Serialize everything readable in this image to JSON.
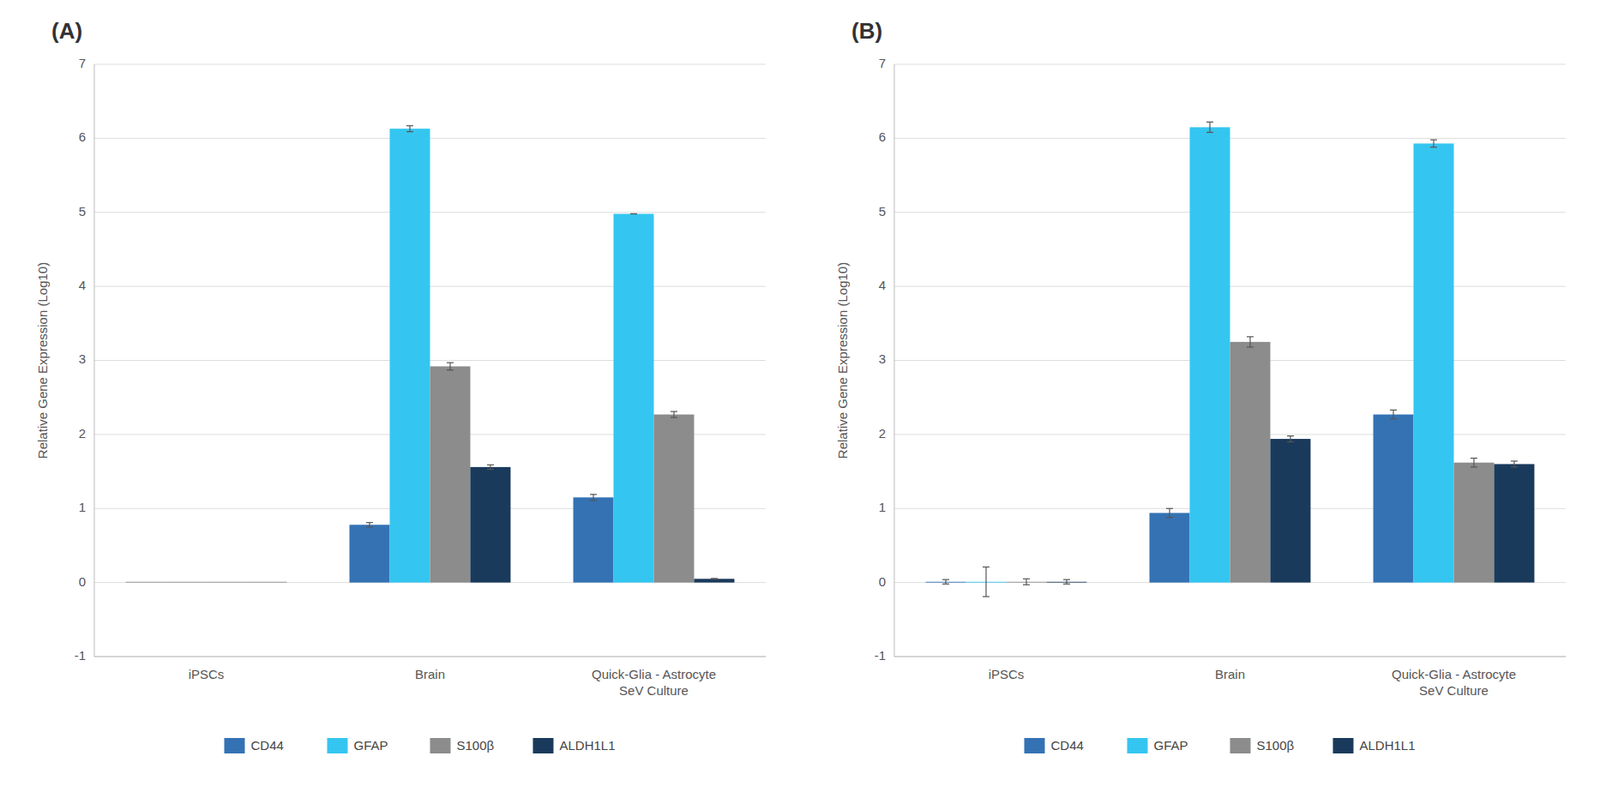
{
  "chart_data": [
    {
      "type": "bar",
      "title": "(A)",
      "categories": [
        "iPSCs",
        "Brain",
        "Quick-Glia - Astrocyte\nSeV Culture"
      ],
      "ylabel": "Relative Gene Expression (Log10)",
      "ylim": [
        -1,
        7
      ],
      "yticks": [
        -1,
        0,
        1,
        2,
        3,
        4,
        5,
        6,
        7
      ],
      "grid": true,
      "legend": "bottom",
      "series": [
        {
          "name": "CD44",
          "color": "#3472B4",
          "colors": [
            "#8C8C8C",
            "#3472B4",
            "#3472B4"
          ],
          "values": [
            0.01,
            0.78,
            1.15
          ],
          "errors": [
            null,
            0.03,
            0.04
          ]
        },
        {
          "name": "GFAP",
          "color": "#34C6F0",
          "colors": [
            "#8C8C8C",
            "#34C6F0",
            "#34C6F0"
          ],
          "values": [
            0.01,
            6.13,
            4.98
          ],
          "errors": [
            null,
            0.04,
            0.0
          ]
        },
        {
          "name": "S100β",
          "color": "#8C8C8C",
          "colors": [
            "#8C8C8C",
            "#8C8C8C",
            "#8C8C8C"
          ],
          "values": [
            0.01,
            2.92,
            2.27
          ],
          "errors": [
            null,
            0.05,
            0.04
          ]
        },
        {
          "name": "ALDH1L1",
          "color": "#1A3A5C",
          "colors": [
            "#8C8C8C",
            "#1A3A5C",
            "#1A3A5C"
          ],
          "values": [
            0.01,
            1.56,
            0.05
          ],
          "errors": [
            null,
            0.03,
            0.005
          ]
        }
      ]
    },
    {
      "type": "bar",
      "title": "(B)",
      "categories": [
        "iPSCs",
        "Brain",
        "Quick-Glia - Astrocyte\nSeV Culture"
      ],
      "ylabel": "Relative Gene Expression (Log10)",
      "ylim": [
        -1,
        7
      ],
      "yticks": [
        -1,
        0,
        1,
        2,
        3,
        4,
        5,
        6,
        7
      ],
      "grid": true,
      "legend": "bottom",
      "series": [
        {
          "name": "CD44",
          "color": "#3472B4",
          "values": [
            0.01,
            0.94,
            2.27
          ],
          "errors": [
            0.03,
            0.06,
            0.06
          ]
        },
        {
          "name": "GFAP",
          "color": "#34C6F0",
          "values": [
            0.01,
            6.15,
            5.93
          ],
          "errors": [
            0.2,
            0.07,
            0.05
          ]
        },
        {
          "name": "S100β",
          "color": "#8C8C8C",
          "values": [
            0.01,
            3.25,
            1.62
          ],
          "errors": [
            0.04,
            0.07,
            0.06
          ]
        },
        {
          "name": "ALDH1L1",
          "color": "#1A3A5C",
          "values": [
            0.01,
            1.94,
            1.6
          ],
          "errors": [
            0.03,
            0.04,
            0.04
          ]
        }
      ]
    }
  ]
}
